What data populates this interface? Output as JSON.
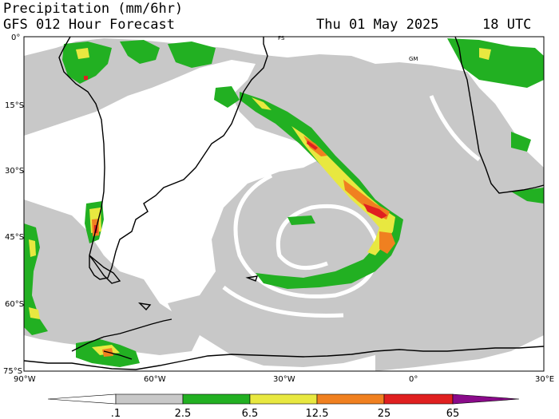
{
  "header": {
    "title": "Precipitation (mm/6hr)",
    "subtitle": "GFS 012 Hour Forecast",
    "date": "Thu 01 May 2025",
    "time": "18 UTC"
  },
  "map": {
    "lat_range": [
      -75,
      0
    ],
    "lon_range": [
      -90,
      30
    ],
    "lat_labels": [
      "0°",
      "15°S",
      "30°S",
      "45°S",
      "60°S",
      "75°S"
    ],
    "lon_labels": [
      "90°W",
      "60°W",
      "30°W",
      "0°",
      "30°E"
    ],
    "place_labels": [
      "FS",
      "GM"
    ]
  },
  "colorbar": {
    "labels": [
      ".1",
      "2.5",
      "6.5",
      "12.5",
      "25",
      "65"
    ],
    "colors": [
      "#ffffff",
      "#c8c8c8",
      "#22b022",
      "#e8e840",
      "#f08020",
      "#e02020",
      "#8a0a8a"
    ]
  }
}
